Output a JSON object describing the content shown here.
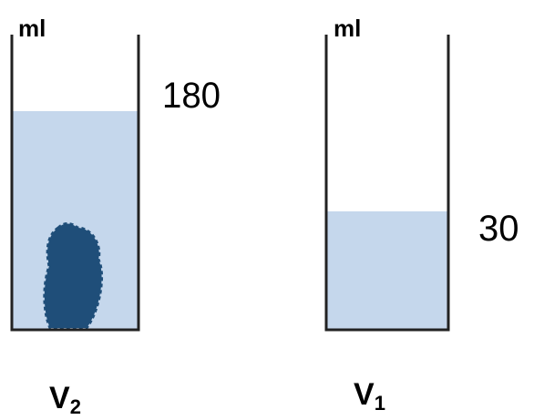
{
  "beakers": [
    {
      "unit": "ml",
      "reading": "180",
      "label": "V",
      "subscript": "2"
    },
    {
      "unit": "ml",
      "reading": "30",
      "label": "V",
      "subscript": "1"
    }
  ]
}
